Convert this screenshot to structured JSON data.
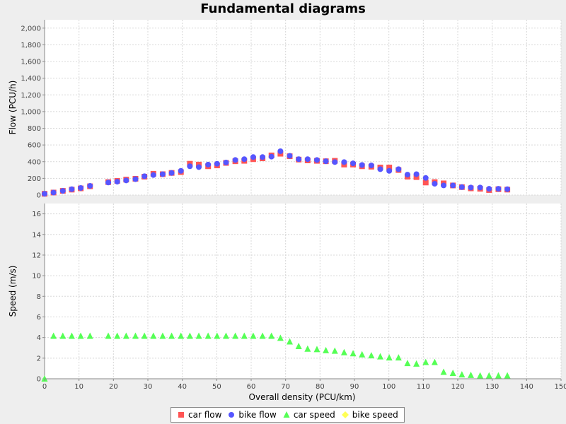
{
  "chart_data": {
    "type": "scatter",
    "title": "Fundamental diagrams",
    "xlabel": "Overall density (PCU/km)",
    "xlim": [
      0,
      150
    ],
    "xticks": [
      0,
      10,
      20,
      30,
      40,
      50,
      60,
      70,
      80,
      90,
      100,
      110,
      120,
      130,
      140,
      150
    ],
    "grid": true,
    "legend_position": "bottom",
    "panels": [
      {
        "ylabel": "Flow (PCU/h)",
        "ylim": [
          0,
          2100
        ],
        "yticks": [
          0,
          200,
          400,
          600,
          800,
          1000,
          1200,
          1400,
          1600,
          1800,
          2000
        ],
        "ytick_labels": [
          "0",
          "200",
          "400",
          "600",
          "800",
          "1,000",
          "1,200",
          "1,400",
          "1,600",
          "1,800",
          "2,000"
        ],
        "series": [
          {
            "name": "car flow",
            "marker": "square",
            "color": "#ff5555",
            "points": [
              [
                0,
                15
              ],
              [
                2.6,
                30
              ],
              [
                5.3,
                50
              ],
              [
                7.9,
                65
              ],
              [
                10.5,
                80
              ],
              [
                13.2,
                105
              ],
              [
                18.5,
                155
              ],
              [
                21.1,
                170
              ],
              [
                23.7,
                185
              ],
              [
                26.4,
                195
              ],
              [
                29,
                220
              ],
              [
                31.6,
                255
              ],
              [
                34.3,
                250
              ],
              [
                36.9,
                265
              ],
              [
                39.6,
                275
              ],
              [
                42.2,
                375
              ],
              [
                44.8,
                365
              ],
              [
                47.5,
                345
              ],
              [
                50.1,
                355
              ],
              [
                52.7,
                385
              ],
              [
                55.4,
                405
              ],
              [
                58,
                410
              ],
              [
                60.6,
                430
              ],
              [
                63.3,
                440
              ],
              [
                65.9,
                475
              ],
              [
                68.5,
                495
              ],
              [
                71.2,
                465
              ],
              [
                73.8,
                425
              ],
              [
                76.4,
                415
              ],
              [
                79.1,
                410
              ],
              [
                81.7,
                405
              ],
              [
                84.3,
                410
              ],
              [
                87,
                365
              ],
              [
                89.6,
                365
              ],
              [
                92.2,
                345
              ],
              [
                94.9,
                340
              ],
              [
                97.5,
                330
              ],
              [
                100.1,
                330
              ],
              [
                102.8,
                300
              ],
              [
                105.4,
                220
              ],
              [
                108,
                215
              ],
              [
                110.7,
                150
              ],
              [
                113.3,
                155
              ],
              [
                115.9,
                140
              ],
              [
                118.6,
                115
              ],
              [
                121.2,
                95
              ],
              [
                123.8,
                80
              ],
              [
                126.5,
                75
              ],
              [
                129.1,
                60
              ],
              [
                131.8,
                70
              ],
              [
                134.4,
                65
              ]
            ]
          },
          {
            "name": "bike flow",
            "marker": "circle",
            "color": "#5555ff",
            "points": [
              [
                0,
                15
              ],
              [
                2.6,
                30
              ],
              [
                5.3,
                50
              ],
              [
                7.9,
                70
              ],
              [
                10.5,
                85
              ],
              [
                13.2,
                110
              ],
              [
                18.5,
                150
              ],
              [
                21.1,
                160
              ],
              [
                23.7,
                175
              ],
              [
                26.4,
                190
              ],
              [
                29,
                225
              ],
              [
                31.6,
                240
              ],
              [
                34.3,
                250
              ],
              [
                36.9,
                265
              ],
              [
                39.6,
                290
              ],
              [
                42.2,
                345
              ],
              [
                44.8,
                335
              ],
              [
                47.5,
                365
              ],
              [
                50.1,
                375
              ],
              [
                52.7,
                390
              ],
              [
                55.4,
                420
              ],
              [
                58,
                430
              ],
              [
                60.6,
                455
              ],
              [
                63.3,
                455
              ],
              [
                65.9,
                460
              ],
              [
                68.5,
                525
              ],
              [
                71.2,
                470
              ],
              [
                73.8,
                430
              ],
              [
                76.4,
                430
              ],
              [
                79.1,
                420
              ],
              [
                81.7,
                405
              ],
              [
                84.3,
                395
              ],
              [
                87,
                395
              ],
              [
                89.6,
                380
              ],
              [
                92.2,
                360
              ],
              [
                94.9,
                355
              ],
              [
                97.5,
                310
              ],
              [
                100.1,
                290
              ],
              [
                102.8,
                310
              ],
              [
                105.4,
                245
              ],
              [
                108,
                250
              ],
              [
                110.7,
                205
              ],
              [
                113.3,
                135
              ],
              [
                115.9,
                115
              ],
              [
                118.6,
                115
              ],
              [
                121.2,
                95
              ],
              [
                123.8,
                90
              ],
              [
                126.5,
                90
              ],
              [
                129.1,
                75
              ],
              [
                131.8,
                75
              ],
              [
                134.4,
                70
              ]
            ]
          }
        ]
      },
      {
        "ylabel": "Speed (m/s)",
        "ylim": [
          0,
          17
        ],
        "yticks": [
          0,
          2,
          4,
          6,
          8,
          10,
          12,
          14,
          16
        ],
        "ytick_labels": [
          "0",
          "2",
          "4",
          "6",
          "8",
          "10",
          "12",
          "14",
          "16"
        ],
        "series": [
          {
            "name": "car speed",
            "marker": "triangle",
            "color": "#55ff55",
            "points": [
              [
                0,
                0
              ],
              [
                2.6,
                4.15
              ],
              [
                5.3,
                4.15
              ],
              [
                7.9,
                4.15
              ],
              [
                10.5,
                4.15
              ],
              [
                13.2,
                4.15
              ],
              [
                18.5,
                4.15
              ],
              [
                21.1,
                4.15
              ],
              [
                23.7,
                4.15
              ],
              [
                26.4,
                4.15
              ],
              [
                29,
                4.15
              ],
              [
                31.6,
                4.15
              ],
              [
                34.3,
                4.15
              ],
              [
                36.9,
                4.15
              ],
              [
                39.6,
                4.15
              ],
              [
                42.2,
                4.15
              ],
              [
                44.8,
                4.15
              ],
              [
                47.5,
                4.15
              ],
              [
                50.1,
                4.15
              ],
              [
                52.7,
                4.15
              ],
              [
                55.4,
                4.15
              ],
              [
                58,
                4.15
              ],
              [
                60.6,
                4.15
              ],
              [
                63.3,
                4.15
              ],
              [
                65.9,
                4.15
              ],
              [
                68.5,
                3.95
              ],
              [
                71.2,
                3.6
              ],
              [
                73.8,
                3.15
              ],
              [
                76.4,
                2.9
              ],
              [
                79.1,
                2.85
              ],
              [
                81.7,
                2.75
              ],
              [
                84.3,
                2.7
              ],
              [
                87,
                2.55
              ],
              [
                89.6,
                2.45
              ],
              [
                92.2,
                2.35
              ],
              [
                94.9,
                2.25
              ],
              [
                97.5,
                2.15
              ],
              [
                100.1,
                2.05
              ],
              [
                102.8,
                2.05
              ],
              [
                105.4,
                1.5
              ],
              [
                108,
                1.45
              ],
              [
                110.7,
                1.6
              ],
              [
                113.3,
                1.6
              ],
              [
                115.9,
                0.65
              ],
              [
                118.6,
                0.55
              ],
              [
                121.2,
                0.4
              ],
              [
                123.8,
                0.35
              ],
              [
                126.5,
                0.3
              ],
              [
                129.1,
                0.3
              ],
              [
                131.8,
                0.3
              ],
              [
                134.4,
                0.3
              ]
            ]
          },
          {
            "name": "bike speed",
            "marker": "diamond",
            "color": "#ffff55",
            "points": []
          }
        ]
      }
    ],
    "legend": [
      {
        "label": "car flow",
        "marker": "square",
        "color": "#ff5555"
      },
      {
        "label": "bike flow",
        "marker": "circle",
        "color": "#5555ff"
      },
      {
        "label": "car speed",
        "marker": "triangle",
        "color": "#55ff55"
      },
      {
        "label": "bike speed",
        "marker": "diamond",
        "color": "#ffff55"
      }
    ]
  }
}
